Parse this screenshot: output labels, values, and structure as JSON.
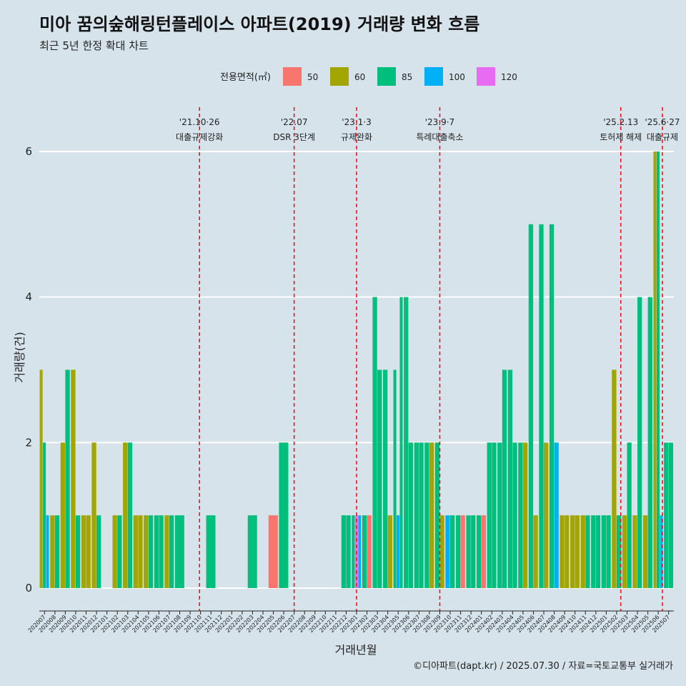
{
  "chart_data": {
    "type": "bar",
    "stacked": true,
    "title": "미아 꿈의숲해링턴플레이스 아파트(2019) 거래량 변화 흐름",
    "subtitle": "최근 5년 한정 확대 차트",
    "xlabel": "거래년월",
    "ylabel": "거래량(건)",
    "ylim": [
      0,
      6
    ],
    "y_ticks": [
      "0",
      "2",
      "4",
      "6"
    ],
    "grid": true,
    "legend": {
      "title": "전용면적(㎡)",
      "position": "top",
      "items": [
        {
          "key": "50",
          "label": "50",
          "color": "#F8766D"
        },
        {
          "key": "60",
          "label": "60",
          "color": "#A3A500"
        },
        {
          "key": "85",
          "label": "85",
          "color": "#00BF7D"
        },
        {
          "key": "100",
          "label": "100",
          "color": "#00B0F6"
        },
        {
          "key": "120",
          "label": "120",
          "color": "#E76BF3"
        }
      ]
    },
    "x_months": [
      "202007",
      "202008",
      "202009",
      "202010",
      "202011",
      "202012",
      "202101",
      "202102",
      "202103",
      "202104",
      "202105",
      "202106",
      "202107",
      "202108",
      "202109",
      "202110",
      "202111",
      "202112",
      "202201",
      "202202",
      "202203",
      "202204",
      "202205",
      "202206",
      "202207",
      "202208",
      "202209",
      "202210",
      "202211",
      "202212",
      "202301",
      "202302",
      "202303",
      "202304",
      "202305",
      "202306",
      "202307",
      "202308",
      "202309",
      "202310",
      "202311",
      "202312",
      "202401",
      "202402",
      "202403",
      "202404",
      "202405",
      "202406",
      "202407",
      "202408",
      "202409",
      "202410",
      "202411",
      "202412",
      "202501",
      "202502",
      "202503",
      "202504",
      "202505",
      "202506",
      "202507"
    ],
    "bars": [
      {
        "month": "202007",
        "segs": [
          {
            "area": "60",
            "value": 3
          },
          {
            "area": "85",
            "value": 2
          },
          {
            "area": "100",
            "value": 1
          }
        ]
      },
      {
        "month": "202008",
        "segs": [
          {
            "area": "60",
            "value": 1
          },
          {
            "area": "85",
            "value": 1
          }
        ]
      },
      {
        "month": "202009",
        "segs": [
          {
            "area": "60",
            "value": 2
          },
          {
            "area": "85",
            "value": 3
          }
        ]
      },
      {
        "month": "202010",
        "segs": [
          {
            "area": "60",
            "value": 3
          },
          {
            "area": "85",
            "value": 1
          }
        ]
      },
      {
        "month": "202011",
        "segs": [
          {
            "area": "60",
            "value": 1
          },
          {
            "area": "60",
            "value": 1
          }
        ]
      },
      {
        "month": "202012",
        "segs": [
          {
            "area": "60",
            "value": 2
          },
          {
            "area": "85",
            "value": 1
          }
        ]
      },
      {
        "month": "202102",
        "segs": [
          {
            "area": "60",
            "value": 1
          },
          {
            "area": "85",
            "value": 1
          }
        ]
      },
      {
        "month": "202103",
        "segs": [
          {
            "area": "60",
            "value": 2
          },
          {
            "area": "85",
            "value": 2
          }
        ]
      },
      {
        "month": "202104",
        "segs": [
          {
            "area": "60",
            "value": 1
          },
          {
            "area": "60",
            "value": 1
          }
        ]
      },
      {
        "month": "202105",
        "segs": [
          {
            "area": "60",
            "value": 1
          },
          {
            "area": "85",
            "value": 1
          }
        ]
      },
      {
        "month": "202106",
        "segs": [
          {
            "area": "85",
            "value": 1
          },
          {
            "area": "85",
            "value": 1
          }
        ]
      },
      {
        "month": "202107",
        "segs": [
          {
            "area": "60",
            "value": 1
          },
          {
            "area": "85",
            "value": 1
          }
        ]
      },
      {
        "month": "202108",
        "segs": [
          {
            "area": "85",
            "value": 1
          }
        ]
      },
      {
        "month": "202111",
        "segs": [
          {
            "area": "85",
            "value": 1
          }
        ]
      },
      {
        "month": "202203",
        "segs": [
          {
            "area": "85",
            "value": 1
          }
        ]
      },
      {
        "month": "202205",
        "segs": [
          {
            "area": "50",
            "value": 1
          }
        ]
      },
      {
        "month": "202206",
        "segs": [
          {
            "area": "85",
            "value": 2
          }
        ]
      },
      {
        "month": "202212",
        "segs": [
          {
            "area": "85",
            "value": 1
          },
          {
            "area": "85",
            "value": 1
          }
        ]
      },
      {
        "month": "202301",
        "segs": [
          {
            "area": "85",
            "value": 1
          },
          {
            "area": "120",
            "value": 1
          },
          {
            "area": "100",
            "value": 1
          }
        ]
      },
      {
        "month": "202302",
        "segs": [
          {
            "area": "85",
            "value": 1
          },
          {
            "area": "50",
            "value": 1
          }
        ]
      },
      {
        "month": "202303",
        "segs": [
          {
            "area": "85",
            "value": 4
          },
          {
            "area": "85",
            "value": 3
          }
        ]
      },
      {
        "month": "202304",
        "segs": [
          {
            "area": "85",
            "value": 3
          },
          {
            "area": "60",
            "value": 1
          }
        ]
      },
      {
        "month": "202305",
        "segs": [
          {
            "area": "85",
            "value": 3
          },
          {
            "area": "100",
            "value": 1
          },
          {
            "area": "85",
            "value": 4
          }
        ]
      },
      {
        "month": "202306",
        "segs": [
          {
            "area": "85",
            "value": 4
          },
          {
            "area": "85",
            "value": 2
          }
        ]
      },
      {
        "month": "202307",
        "segs": [
          {
            "area": "85",
            "value": 2
          },
          {
            "area": "85",
            "value": 2
          }
        ]
      },
      {
        "month": "202308",
        "segs": [
          {
            "area": "85",
            "value": 2
          },
          {
            "area": "60",
            "value": 2
          }
        ]
      },
      {
        "month": "202309",
        "segs": [
          {
            "area": "85",
            "value": 2
          },
          {
            "area": "60",
            "value": 1
          }
        ]
      },
      {
        "month": "202310",
        "segs": [
          {
            "area": "100",
            "value": 1
          },
          {
            "area": "85",
            "value": 1
          }
        ]
      },
      {
        "month": "202311",
        "segs": [
          {
            "area": "85",
            "value": 1
          },
          {
            "area": "50",
            "value": 1
          }
        ]
      },
      {
        "month": "202312",
        "segs": [
          {
            "area": "85",
            "value": 1
          },
          {
            "area": "85",
            "value": 1
          }
        ]
      },
      {
        "month": "202401",
        "segs": [
          {
            "area": "85",
            "value": 1
          },
          {
            "area": "50",
            "value": 1
          }
        ]
      },
      {
        "month": "202402",
        "segs": [
          {
            "area": "85",
            "value": 2
          },
          {
            "area": "85",
            "value": 2
          }
        ]
      },
      {
        "month": "202403",
        "segs": [
          {
            "area": "85",
            "value": 2
          },
          {
            "area": "85",
            "value": 3
          }
        ]
      },
      {
        "month": "202404",
        "segs": [
          {
            "area": "85",
            "value": 3
          },
          {
            "area": "85",
            "value": 2
          }
        ]
      },
      {
        "month": "202405",
        "segs": [
          {
            "area": "85",
            "value": 2
          },
          {
            "area": "60",
            "value": 2
          }
        ]
      },
      {
        "month": "202406",
        "segs": [
          {
            "area": "85",
            "value": 5
          },
          {
            "area": "60",
            "value": 1
          }
        ]
      },
      {
        "month": "202407",
        "segs": [
          {
            "area": "85",
            "value": 5
          },
          {
            "area": "60",
            "value": 2
          }
        ]
      },
      {
        "month": "202408",
        "segs": [
          {
            "area": "85",
            "value": 5
          },
          {
            "area": "100",
            "value": 2
          }
        ]
      },
      {
        "month": "202409",
        "segs": [
          {
            "area": "60",
            "value": 1
          },
          {
            "area": "60",
            "value": 1
          }
        ]
      },
      {
        "month": "202410",
        "segs": [
          {
            "area": "60",
            "value": 1
          },
          {
            "area": "60",
            "value": 1
          }
        ]
      },
      {
        "month": "202411",
        "segs": [
          {
            "area": "60",
            "value": 1
          },
          {
            "area": "85",
            "value": 1
          }
        ]
      },
      {
        "month": "202412",
        "segs": [
          {
            "area": "85",
            "value": 1
          },
          {
            "area": "85",
            "value": 1
          }
        ]
      },
      {
        "month": "202501",
        "segs": [
          {
            "area": "85",
            "value": 1
          },
          {
            "area": "85",
            "value": 1
          }
        ]
      },
      {
        "month": "202502",
        "segs": [
          {
            "area": "60",
            "value": 3
          },
          {
            "area": "85",
            "value": 1
          }
        ]
      },
      {
        "month": "202503",
        "segs": [
          {
            "area": "60",
            "value": 1
          },
          {
            "area": "85",
            "value": 2
          }
        ]
      },
      {
        "month": "202504",
        "segs": [
          {
            "area": "60",
            "value": 1
          },
          {
            "area": "85",
            "value": 4
          }
        ]
      },
      {
        "month": "202505",
        "segs": [
          {
            "area": "60",
            "value": 1
          },
          {
            "area": "85",
            "value": 4
          }
        ]
      },
      {
        "month": "202506",
        "segs": [
          {
            "area": "60",
            "value": 6
          },
          {
            "area": "85",
            "value": 6
          },
          {
            "area": "100",
            "value": 1
          }
        ]
      },
      {
        "month": "202507",
        "segs": [
          {
            "area": "85",
            "value": 2
          },
          {
            "area": "85",
            "value": 2
          }
        ]
      }
    ],
    "events": [
      {
        "month_index": 15.4,
        "date": "'21.10·26",
        "label": "대출규제강화"
      },
      {
        "month_index": 24.5,
        "date": "'22.07",
        "label": "DSR 3단계"
      },
      {
        "month_index": 30.5,
        "date": "'23.1·3",
        "label": "규제완화"
      },
      {
        "month_index": 38.5,
        "date": "'23.9·7",
        "label": "특례대출축소"
      },
      {
        "month_index": 55.9,
        "date": "'25.2.13",
        "label": "토허제 해제"
      },
      {
        "month_index": 59.9,
        "date": "'25.6·27",
        "label": "대출규제"
      }
    ],
    "caption": "©디아파트(dapt.kr) / 2025.07.30 / 자료=국토교통부 실거래가"
  }
}
